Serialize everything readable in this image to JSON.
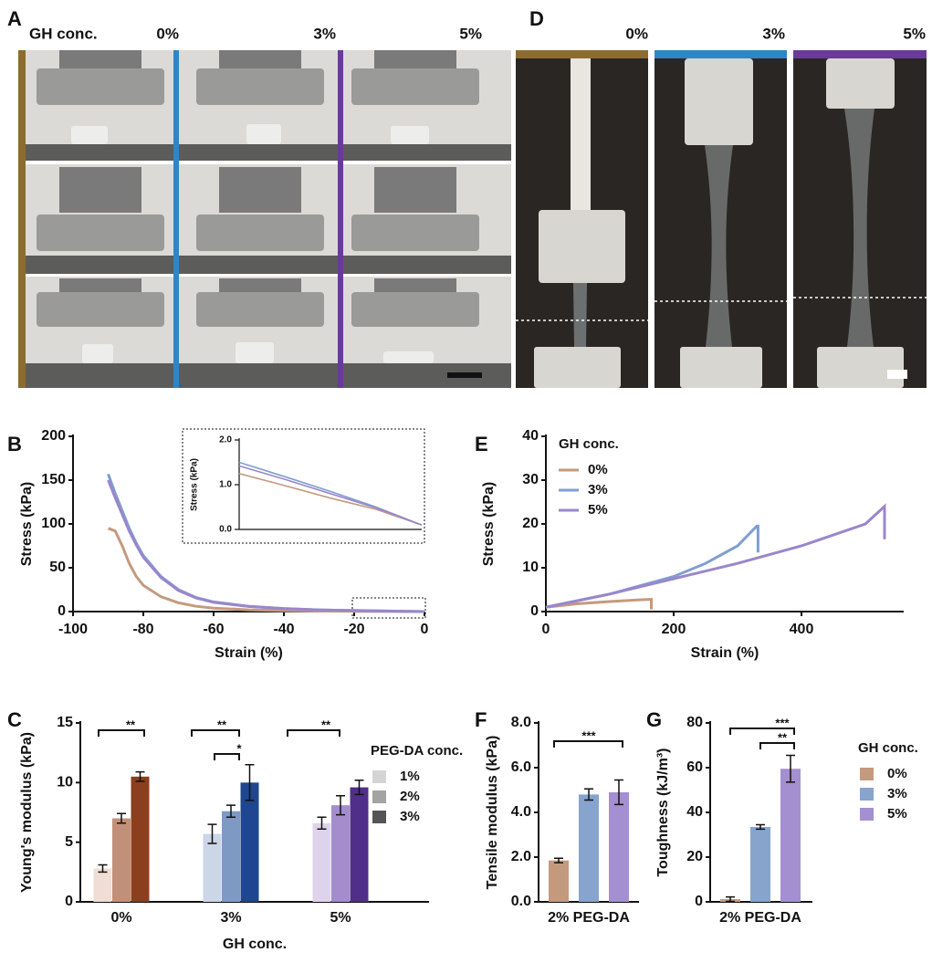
{
  "photos": {
    "A": {
      "letter": "A",
      "header": "GH conc.",
      "columns": [
        "0%",
        "3%",
        "5%"
      ]
    },
    "D": {
      "letter": "D",
      "columns": [
        "0%",
        "3%",
        "5%"
      ]
    }
  },
  "chart_data": [
    {
      "type": "line",
      "panel": "B",
      "x_label": "Strain (%)",
      "y_label": "Stress (kPa)",
      "x": [
        -90,
        -88,
        -86,
        -84,
        -82,
        -80,
        -75,
        -70,
        -65,
        -60,
        -50,
        -40,
        -30,
        -20,
        -10,
        0
      ],
      "series": [
        {
          "color": "#c49a7e",
          "values": [
            95,
            92,
            75,
            55,
            40,
            30,
            17,
            10,
            6,
            4,
            2,
            1,
            0.5,
            0.3,
            0.15,
            0
          ]
        },
        {
          "color": "#7f9fcf",
          "values": [
            157,
            135,
            115,
            95,
            78,
            64,
            40,
            25,
            16,
            11,
            6,
            3.5,
            2,
            1.2,
            0.6,
            0
          ]
        },
        {
          "color": "#9a86cc",
          "values": [
            150,
            130,
            111,
            92,
            76,
            62,
            39,
            24,
            15.5,
            10.5,
            5.8,
            3.3,
            1.9,
            1.15,
            0.55,
            0
          ]
        }
      ],
      "xlim": [
        -100,
        0
      ],
      "xticks": [
        -100,
        -80,
        -60,
        -40,
        -20,
        0
      ],
      "ylim": [
        0,
        200
      ],
      "yticks": [
        0,
        50,
        100,
        150,
        200
      ]
    },
    {
      "type": "line",
      "y_label": "Stress (kPa)",
      "x": [
        -20,
        -15,
        -10,
        -5,
        0
      ],
      "series": [
        {
          "color": "#c49a7e",
          "values": [
            1.25,
            0.98,
            0.7,
            0.45,
            0.1
          ]
        },
        {
          "color": "#7f9fcf",
          "values": [
            1.5,
            1.18,
            0.85,
            0.5,
            0.1
          ]
        },
        {
          "color": "#9a86cc",
          "values": [
            1.42,
            1.12,
            0.8,
            0.48,
            0.1
          ]
        }
      ],
      "xlim": [
        -20,
        0
      ],
      "ylim": [
        0,
        2
      ],
      "yticks": [
        {
          "value": 0,
          "label": "0.0"
        },
        {
          "value": 1,
          "label": "1.0"
        },
        {
          "value": 2,
          "label": "2.0"
        }
      ]
    },
    {
      "type": "line",
      "panel": "E",
      "x_label": "Strain (%)",
      "y_label": "Stress (kPa)",
      "legend_title": "GH conc.",
      "series": [
        {
          "name": "0%",
          "color": "#c49a7e",
          "x": [
            0,
            50,
            100,
            150,
            165,
            165
          ],
          "values": [
            1,
            1.8,
            2.3,
            2.7,
            2.8,
            0.5
          ]
        },
        {
          "name": "3%",
          "color": "#7f9fcf",
          "x": [
            0,
            50,
            100,
            150,
            200,
            250,
            300,
            330,
            332,
            332
          ],
          "values": [
            1,
            2.5,
            4,
            6,
            8,
            11,
            15,
            19.5,
            19.5,
            13.5
          ]
        },
        {
          "name": "5%",
          "color": "#9a86cc",
          "x": [
            0,
            100,
            200,
            300,
            400,
            500,
            530,
            530
          ],
          "values": [
            1,
            4,
            7.5,
            11,
            15,
            20,
            24,
            16.5
          ]
        }
      ],
      "xlim": [
        0,
        560
      ],
      "xticks": [
        0,
        200,
        400
      ],
      "ylim": [
        0,
        40
      ],
      "yticks": [
        0,
        10,
        20,
        30,
        40
      ]
    },
    {
      "type": "bar",
      "panel": "C",
      "x_label": "GH conc.",
      "y_label": "Young's modulus (kPa)",
      "legend_title": "PEG-DA conc.",
      "categories": [
        "0%",
        "3%",
        "5%"
      ],
      "series": [
        {
          "name": "1%",
          "color": "#d4d4d4",
          "bar_colors": [
            "#f0ded4",
            "#cbd6e8",
            "#ddd4ec"
          ],
          "values": [
            2.8,
            5.7,
            6.6
          ],
          "errors": [
            0.3,
            0.8,
            0.5
          ]
        },
        {
          "name": "2%",
          "color": "#a3a3a3",
          "bar_colors": [
            "#c29078",
            "#7e9ac4",
            "#a48dcc"
          ],
          "values": [
            7.0,
            7.6,
            8.1
          ],
          "errors": [
            0.4,
            0.5,
            0.8
          ]
        },
        {
          "name": "3%",
          "color": "#555555",
          "bar_colors": [
            "#8b3f1e",
            "#1f4690",
            "#4f2f8a"
          ],
          "values": [
            10.5,
            10.0,
            9.6
          ],
          "errors": [
            0.4,
            1.5,
            0.6
          ]
        }
      ],
      "significance": [
        "**",
        "**",
        "*",
        "**"
      ],
      "ylim": [
        0,
        15
      ],
      "yticks": [
        0,
        5,
        10,
        15
      ]
    },
    {
      "type": "bar",
      "panel": "F",
      "y_label": "Tensile modulus (kPa)",
      "categories": [
        "2% PEG-DA"
      ],
      "series": [
        {
          "color": "#c49a7e",
          "values": [
            1.85
          ],
          "errors": [
            0.1
          ]
        },
        {
          "color": "#86a4cc",
          "values": [
            4.8
          ],
          "errors": [
            0.25
          ]
        },
        {
          "color": "#a48fd0",
          "values": [
            4.9
          ],
          "errors": [
            0.55
          ]
        }
      ],
      "significance": [
        "***"
      ],
      "ylim": [
        0,
        8
      ],
      "yticks": [
        {
          "value": 0,
          "label": "0.0"
        },
        {
          "value": 2,
          "label": "2.0"
        },
        {
          "value": 4,
          "label": "4.0"
        },
        {
          "value": 6,
          "label": "6.0"
        },
        {
          "value": 8,
          "label": "8.0"
        }
      ]
    },
    {
      "type": "bar",
      "panel": "G",
      "y_label": "Toughness (kJ/m³)",
      "legend_title": "GH conc.",
      "categories": [
        "2% PEG-DA"
      ],
      "series": [
        {
          "name": "0%",
          "color": "#c49a7e",
          "values": [
            1.2
          ],
          "errors": [
            1.0
          ]
        },
        {
          "name": "3%",
          "color": "#86a4cc",
          "values": [
            33.5
          ],
          "errors": [
            1.0
          ]
        },
        {
          "name": "5%",
          "color": "#a48fd0",
          "values": [
            59.5
          ],
          "errors": [
            6.0
          ]
        }
      ],
      "significance": [
        "***",
        "**"
      ],
      "ylim": [
        0,
        80
      ],
      "yticks": [
        0,
        20,
        40,
        60,
        80
      ]
    }
  ]
}
